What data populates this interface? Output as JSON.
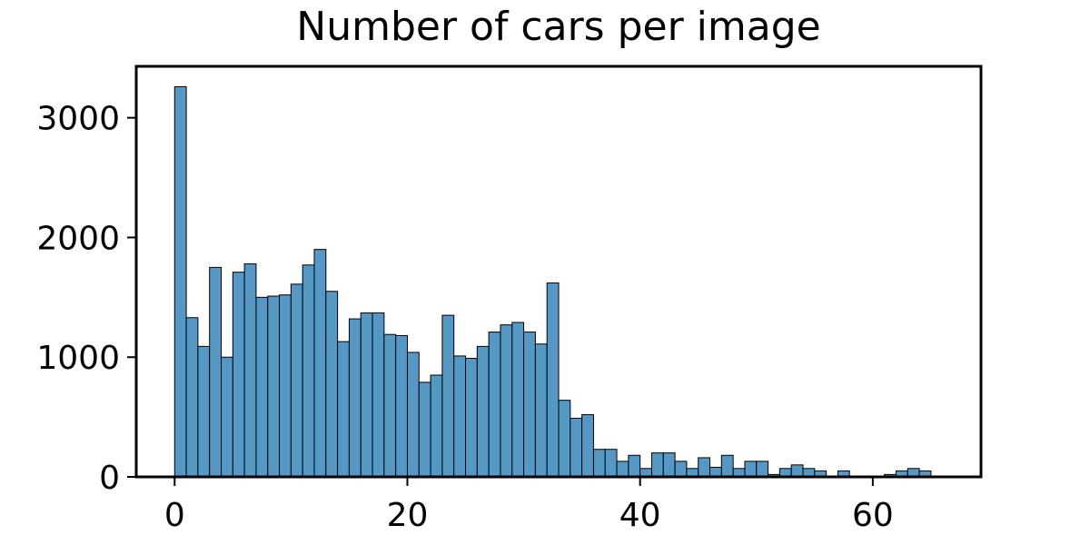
{
  "chart_data": {
    "type": "bar",
    "title": "Number of cars per image",
    "xlabel": "",
    "ylabel": "",
    "xlim": [
      -3.3,
      69.3
    ],
    "ylim": [
      0,
      3430
    ],
    "xticks": [
      0,
      20,
      40,
      60
    ],
    "yticks": [
      0,
      1000,
      2000,
      3000
    ],
    "bin_width": 1,
    "bins_start": [
      0,
      1,
      2,
      3,
      4,
      5,
      6,
      7,
      8,
      9,
      10,
      11,
      12,
      13,
      14,
      15,
      16,
      17,
      18,
      19,
      20,
      21,
      22,
      23,
      24,
      25,
      26,
      27,
      28,
      29,
      30,
      31,
      32,
      33,
      34,
      35,
      36,
      37,
      38,
      39,
      40,
      41,
      42,
      43,
      44,
      45,
      46,
      47,
      48,
      49,
      50,
      51,
      52,
      53,
      54,
      55,
      56,
      57,
      58,
      59,
      60,
      61,
      62,
      63,
      64,
      65
    ],
    "values": [
      3260,
      1330,
      1090,
      1750,
      1000,
      1710,
      1780,
      1500,
      1510,
      1520,
      1610,
      1770,
      1900,
      1550,
      1130,
      1320,
      1370,
      1370,
      1190,
      1180,
      1040,
      790,
      850,
      1350,
      1010,
      990,
      1090,
      1210,
      1270,
      1290,
      1210,
      1110,
      1620,
      640,
      490,
      520,
      230,
      230,
      130,
      180,
      70,
      200,
      200,
      130,
      70,
      160,
      80,
      180,
      70,
      130,
      130,
      20,
      70,
      100,
      70,
      50,
      0,
      50,
      0,
      0,
      0,
      20,
      50,
      70,
      50,
      0
    ],
    "bar_color": "#5597c5",
    "edge_color": "#000000",
    "grid": false,
    "legend": false
  }
}
